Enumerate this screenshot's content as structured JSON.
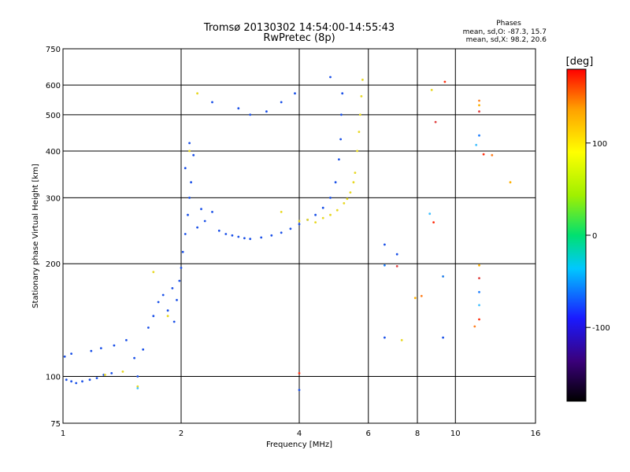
{
  "chart_data": {
    "type": "scatter",
    "title": "Tromsø 20130302 14:54:00-14:55:43",
    "subtitle": "RwPretec (8p)",
    "xlabel": "Frequency [MHz]",
    "ylabel": "Stationary phase Virtual Height [km]",
    "x_scale": "log2",
    "y_scale": "log",
    "xlim": [
      1,
      16
    ],
    "ylim": [
      75,
      750
    ],
    "x_ticks": [
      1,
      2,
      4,
      6,
      8,
      10,
      16
    ],
    "x_tick_labels": [
      "1",
      "2",
      "4",
      "6",
      "8",
      "10",
      "16"
    ],
    "y_ticks": [
      75,
      100,
      200,
      300,
      400,
      500,
      600,
      750
    ],
    "y_tick_labels": [
      "75",
      "100",
      "200",
      "300",
      "400",
      "500",
      "600",
      "750"
    ],
    "grid": true,
    "stats_header": "Phases",
    "stats_lines": [
      "mean, sd,O:  -87.3, 15.7",
      "mean, sd,X:  98.2, 20.6"
    ],
    "colorbar": {
      "label": "[deg]",
      "min": -180,
      "max": 180,
      "ticks": [
        100,
        0,
        -100
      ],
      "tick_labels": [
        "100",
        "0",
        "-100"
      ]
    },
    "colors": {
      "o_mode": "#1a50e8",
      "x_mode": "#e8d820",
      "colormap": [
        "#000000",
        "#3a007a",
        "#1a1aff",
        "#00c8ff",
        "#00e070",
        "#a0f000",
        "#ffff00",
        "#ffa000",
        "#ff0000"
      ]
    },
    "series": [
      {
        "mode": "O",
        "points": [
          [
            1.02,
            98
          ],
          [
            1.05,
            97
          ],
          [
            1.08,
            96
          ],
          [
            1.12,
            97
          ],
          [
            1.17,
            98
          ],
          [
            1.22,
            99
          ],
          [
            1.27,
            101
          ],
          [
            1.33,
            102
          ],
          [
            1.01,
            113
          ],
          [
            1.05,
            115
          ],
          [
            1.18,
            117
          ],
          [
            1.25,
            119
          ],
          [
            1.35,
            121
          ],
          [
            1.45,
            125
          ],
          [
            1.52,
            112
          ],
          [
            1.6,
            118
          ],
          [
            1.65,
            135
          ],
          [
            1.7,
            145
          ],
          [
            1.75,
            158
          ],
          [
            1.8,
            165
          ],
          [
            1.85,
            150
          ],
          [
            1.9,
            172
          ],
          [
            1.92,
            140
          ],
          [
            1.95,
            160
          ],
          [
            1.98,
            180
          ],
          [
            2.0,
            195
          ],
          [
            2.02,
            215
          ],
          [
            2.05,
            240
          ],
          [
            2.08,
            270
          ],
          [
            2.1,
            300
          ],
          [
            2.12,
            330
          ],
          [
            2.05,
            360
          ],
          [
            2.15,
            390
          ],
          [
            2.1,
            420
          ],
          [
            2.2,
            250
          ],
          [
            2.25,
            280
          ],
          [
            2.3,
            260
          ],
          [
            2.4,
            275
          ],
          [
            2.5,
            245
          ],
          [
            2.6,
            240
          ],
          [
            2.7,
            238
          ],
          [
            2.8,
            236
          ],
          [
            2.9,
            234
          ],
          [
            3.0,
            233
          ],
          [
            3.2,
            235
          ],
          [
            3.4,
            238
          ],
          [
            3.6,
            242
          ],
          [
            3.8,
            248
          ],
          [
            4.0,
            255
          ],
          [
            4.2,
            262
          ],
          [
            4.4,
            270
          ],
          [
            4.6,
            282
          ],
          [
            4.8,
            300
          ],
          [
            4.95,
            330
          ],
          [
            5.05,
            380
          ],
          [
            5.1,
            430
          ],
          [
            5.12,
            500
          ],
          [
            5.15,
            570
          ],
          [
            2.8,
            520
          ],
          [
            3.0,
            500
          ],
          [
            3.3,
            510
          ],
          [
            3.6,
            540
          ],
          [
            3.9,
            570
          ],
          [
            2.4,
            540
          ],
          [
            4.8,
            630
          ],
          [
            6.6,
            225
          ],
          [
            7.1,
            212
          ],
          [
            6.6,
            127
          ],
          [
            9.3,
            127
          ],
          [
            4.0,
            92
          ],
          [
            1.55,
            100
          ]
        ]
      },
      {
        "mode": "X",
        "points": [
          [
            1.28,
            101
          ],
          [
            1.42,
            103
          ],
          [
            1.55,
            94
          ],
          [
            1.7,
            190
          ],
          [
            1.85,
            145
          ],
          [
            2.2,
            570
          ],
          [
            2.1,
            400
          ],
          [
            4.2,
            262
          ],
          [
            4.4,
            258
          ],
          [
            4.6,
            265
          ],
          [
            4.8,
            270
          ],
          [
            5.0,
            278
          ],
          [
            5.2,
            290
          ],
          [
            5.4,
            310
          ],
          [
            5.55,
            350
          ],
          [
            5.62,
            400
          ],
          [
            5.68,
            450
          ],
          [
            5.72,
            500
          ],
          [
            5.76,
            560
          ],
          [
            5.8,
            620
          ],
          [
            4.0,
            260
          ],
          [
            3.6,
            275
          ],
          [
            5.3,
            298
          ],
          [
            5.5,
            330
          ],
          [
            8.7,
            582
          ],
          [
            9.3,
            185
          ],
          [
            7.3,
            125
          ]
        ]
      },
      {
        "mode": "other",
        "points": [
          [
            9.4,
            612
          ],
          [
            11.5,
            545
          ],
          [
            11.5,
            530
          ],
          [
            11.5,
            510
          ],
          [
            11.5,
            440
          ],
          [
            11.3,
            415
          ],
          [
            11.8,
            392
          ],
          [
            12.4,
            390
          ],
          [
            11.5,
            198
          ],
          [
            11.5,
            183
          ],
          [
            11.5,
            168
          ],
          [
            11.5,
            155
          ],
          [
            11.5,
            142
          ],
          [
            11.2,
            136
          ],
          [
            13.8,
            330
          ],
          [
            7.1,
            197
          ],
          [
            6.6,
            198
          ],
          [
            8.6,
            272
          ],
          [
            8.8,
            258
          ],
          [
            8.2,
            164
          ],
          [
            7.9,
            162
          ],
          [
            8.9,
            478
          ],
          [
            9.3,
            185
          ],
          [
            1.55,
            93
          ],
          [
            4.0,
            102
          ]
        ]
      }
    ]
  }
}
